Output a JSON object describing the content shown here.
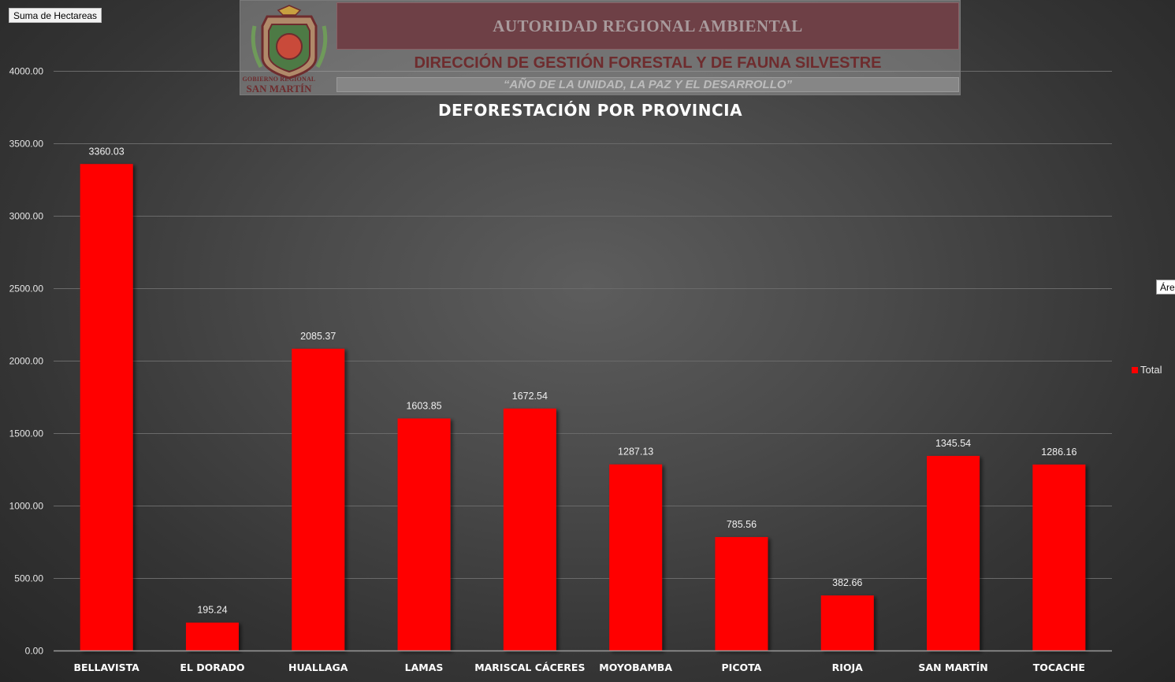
{
  "field_button": "Suma de Hectareas",
  "side_tooltip": "Áre",
  "header": {
    "seal_caption_small": "GOBIERNO REGIONAL",
    "seal_caption_big": "SAN MARTÍN",
    "title": "AUTORIDAD REGIONAL AMBIENTAL",
    "subtitle": "DIRECCIÓN DE GESTIÓN FORESTAL Y DE FAUNA SILVESTRE",
    "motto": "“AÑO DE LA UNIDAD, LA PAZ Y EL DESARROLLO”"
  },
  "legend": {
    "label": "Total"
  },
  "chart_data": {
    "type": "bar",
    "title": "DEFORESTACIÓN POR PROVINCIA",
    "categories": [
      "BELLAVISTA",
      "EL DORADO",
      "HUALLAGA",
      "LAMAS",
      "MARISCAL CÁCERES",
      "MOYOBAMBA",
      "PICOTA",
      "RIOJA",
      "SAN MARTÍN",
      "TOCACHE"
    ],
    "series": [
      {
        "name": "Total",
        "values": [
          3360.03,
          195.24,
          2085.37,
          1603.85,
          1672.54,
          1287.13,
          785.56,
          382.66,
          1345.54,
          1286.16
        ]
      }
    ],
    "data_labels": [
      "3360.03",
      "195.24",
      "2085.37",
      "1603.85",
      "1672.54",
      "1287.13",
      "785.56",
      "382.66",
      "1345.54",
      "1286.16"
    ],
    "y_ticks": [
      "0.00",
      "500.00",
      "1000.00",
      "1500.00",
      "2000.00",
      "2500.00",
      "3000.00",
      "3500.00",
      "4000.00"
    ],
    "ylim": [
      0,
      4000
    ],
    "grid": true,
    "legend_position": "right",
    "bar_color": "#ff0000"
  }
}
